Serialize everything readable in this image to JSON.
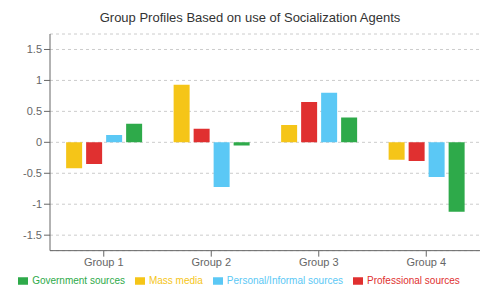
{
  "chart_data": {
    "type": "bar",
    "title": "Group Profiles Based on use of Socialization Agents",
    "categories": [
      "Group 1",
      "Group 2",
      "Group 3",
      "Group 4"
    ],
    "series": [
      {
        "name": "Mass media",
        "color": "#F5C518",
        "values": [
          -0.42,
          0.93,
          0.28,
          -0.28
        ]
      },
      {
        "name": "Professional sources",
        "color": "#E03030",
        "values": [
          -0.35,
          0.22,
          0.65,
          -0.3
        ]
      },
      {
        "name": "Personal/Informal sources",
        "color": "#5BC8F5",
        "values": [
          0.12,
          -0.72,
          0.8,
          -0.56
        ]
      },
      {
        "name": "Government sources",
        "color": "#2EAA4A",
        "values": [
          0.3,
          -0.05,
          0.4,
          -1.12
        ]
      }
    ],
    "ylim": [
      -1.75,
      1.75
    ],
    "yticks": [
      -1.5,
      -1,
      -0.5,
      0,
      0.5,
      1,
      1.5
    ],
    "grid": true,
    "legend": "bottom"
  }
}
